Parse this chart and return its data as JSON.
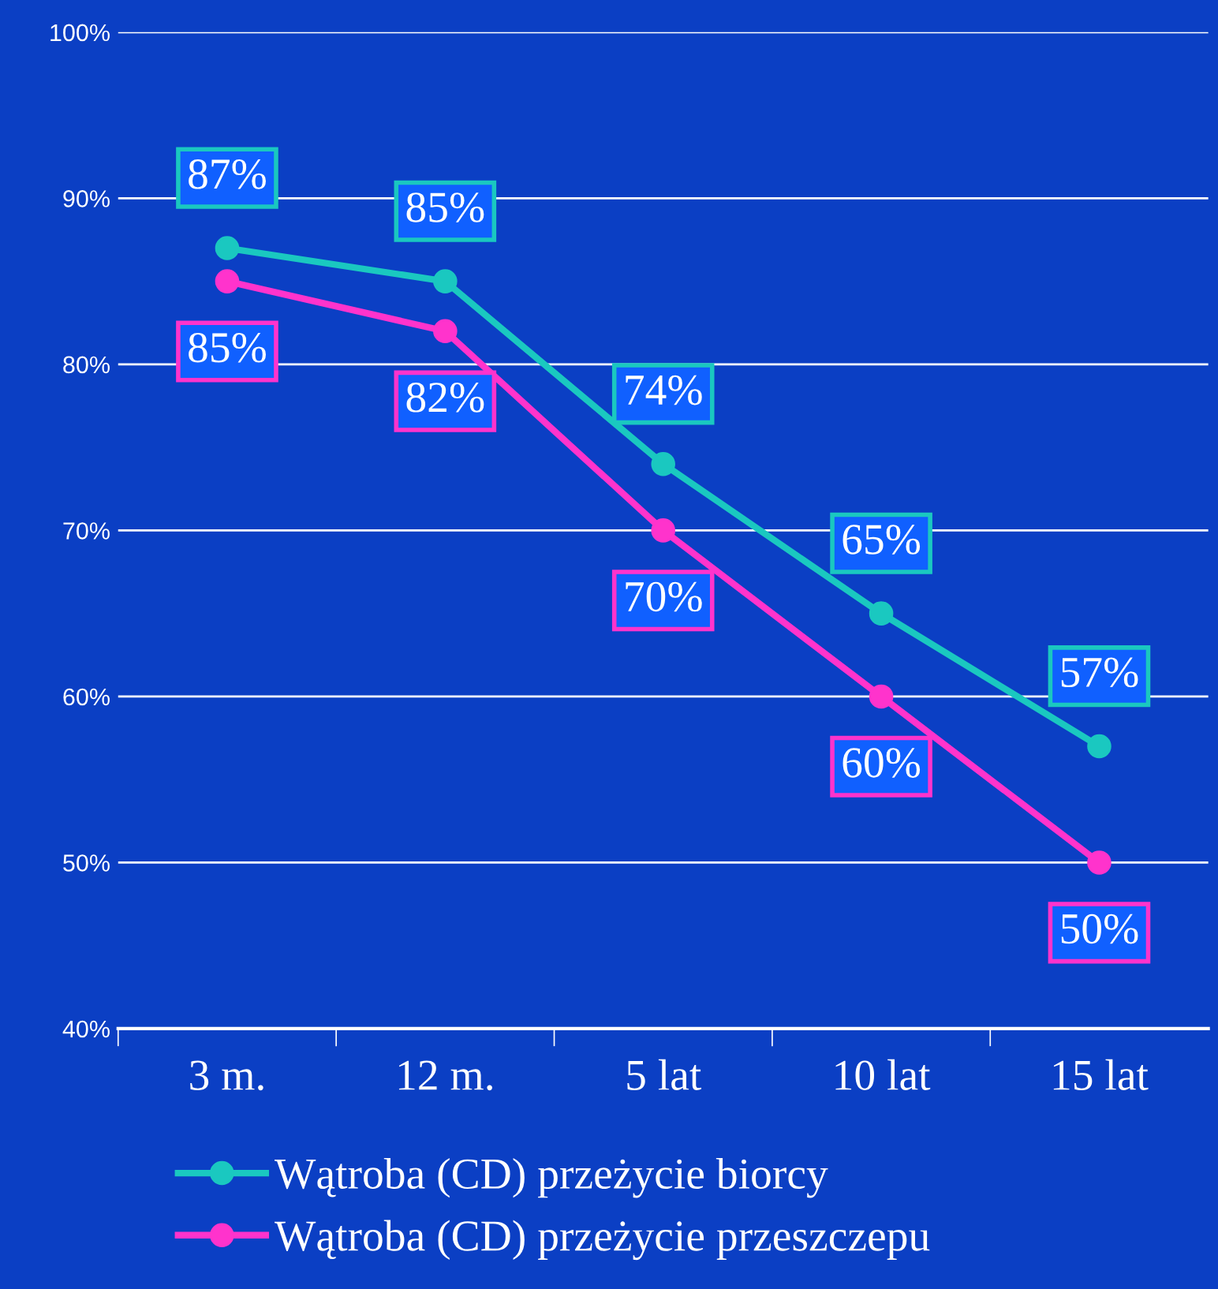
{
  "chart_data": {
    "type": "line",
    "categories": [
      "3 m.",
      "12 m.",
      "5 lat",
      "10 lat",
      "15 lat"
    ],
    "series": [
      {
        "name": "Wątroba (CD) przeżycie biorcy",
        "color": "#1ac8c0",
        "values": [
          87,
          85,
          74,
          65,
          57
        ],
        "value_labels": [
          "87%",
          "85%",
          "74%",
          "65%",
          "57%"
        ]
      },
      {
        "name": "Wątroba (CD) przeżycie przeszczepu",
        "color": "#ff33cc",
        "values": [
          85,
          82,
          70,
          60,
          50
        ],
        "value_labels": [
          "85%",
          "82%",
          "70%",
          "60%",
          "50%"
        ]
      }
    ],
    "ylim": [
      40,
      100
    ],
    "yticks": [
      {
        "value": 40,
        "label": "40%"
      },
      {
        "value": 50,
        "label": "50%"
      },
      {
        "value": 60,
        "label": "60%"
      },
      {
        "value": 70,
        "label": "70%"
      },
      {
        "value": 80,
        "label": "80%"
      },
      {
        "value": 90,
        "label": "90%"
      },
      {
        "value": 100,
        "label": "100%"
      }
    ],
    "grid": "y",
    "legend": "bottom",
    "marker": "circle",
    "line_style": "solid"
  }
}
